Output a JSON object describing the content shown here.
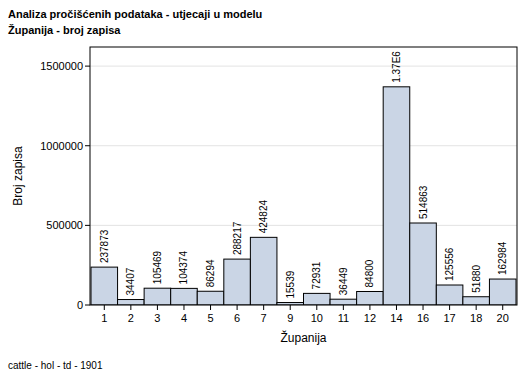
{
  "chart_data": {
    "type": "bar",
    "title": "Analiza pročišćenih podataka - utjecaji u modelu",
    "subtitle": "Županija - broj zapisa",
    "x_label": "Županija",
    "y_label": "Broj zapisa",
    "annotations": [
      "cattle - hol - td - 1901"
    ],
    "categories": [
      "1",
      "2",
      "3",
      "4",
      "5",
      "6",
      "7",
      "9",
      "10",
      "11",
      "12",
      "14",
      "16",
      "17",
      "18",
      "20"
    ],
    "values": [
      237873,
      34407,
      105469,
      104374,
      86294,
      288217,
      424824,
      15539,
      72931,
      36449,
      84800,
      1370000,
      514863,
      125556,
      51880,
      162984
    ],
    "value_labels": [
      "237873",
      "34407",
      "105469",
      "104374",
      "86294",
      "288217",
      "424824",
      "15539",
      "72931",
      "36449",
      "84800",
      "1.37E6",
      "514863",
      "125556",
      "51880",
      "162984"
    ],
    "data_labels": true,
    "color": "#cad5e5",
    "ylim": [
      0,
      1620000
    ],
    "yticks": [
      0,
      500000,
      1000000,
      1500000
    ],
    "grid": true
  }
}
